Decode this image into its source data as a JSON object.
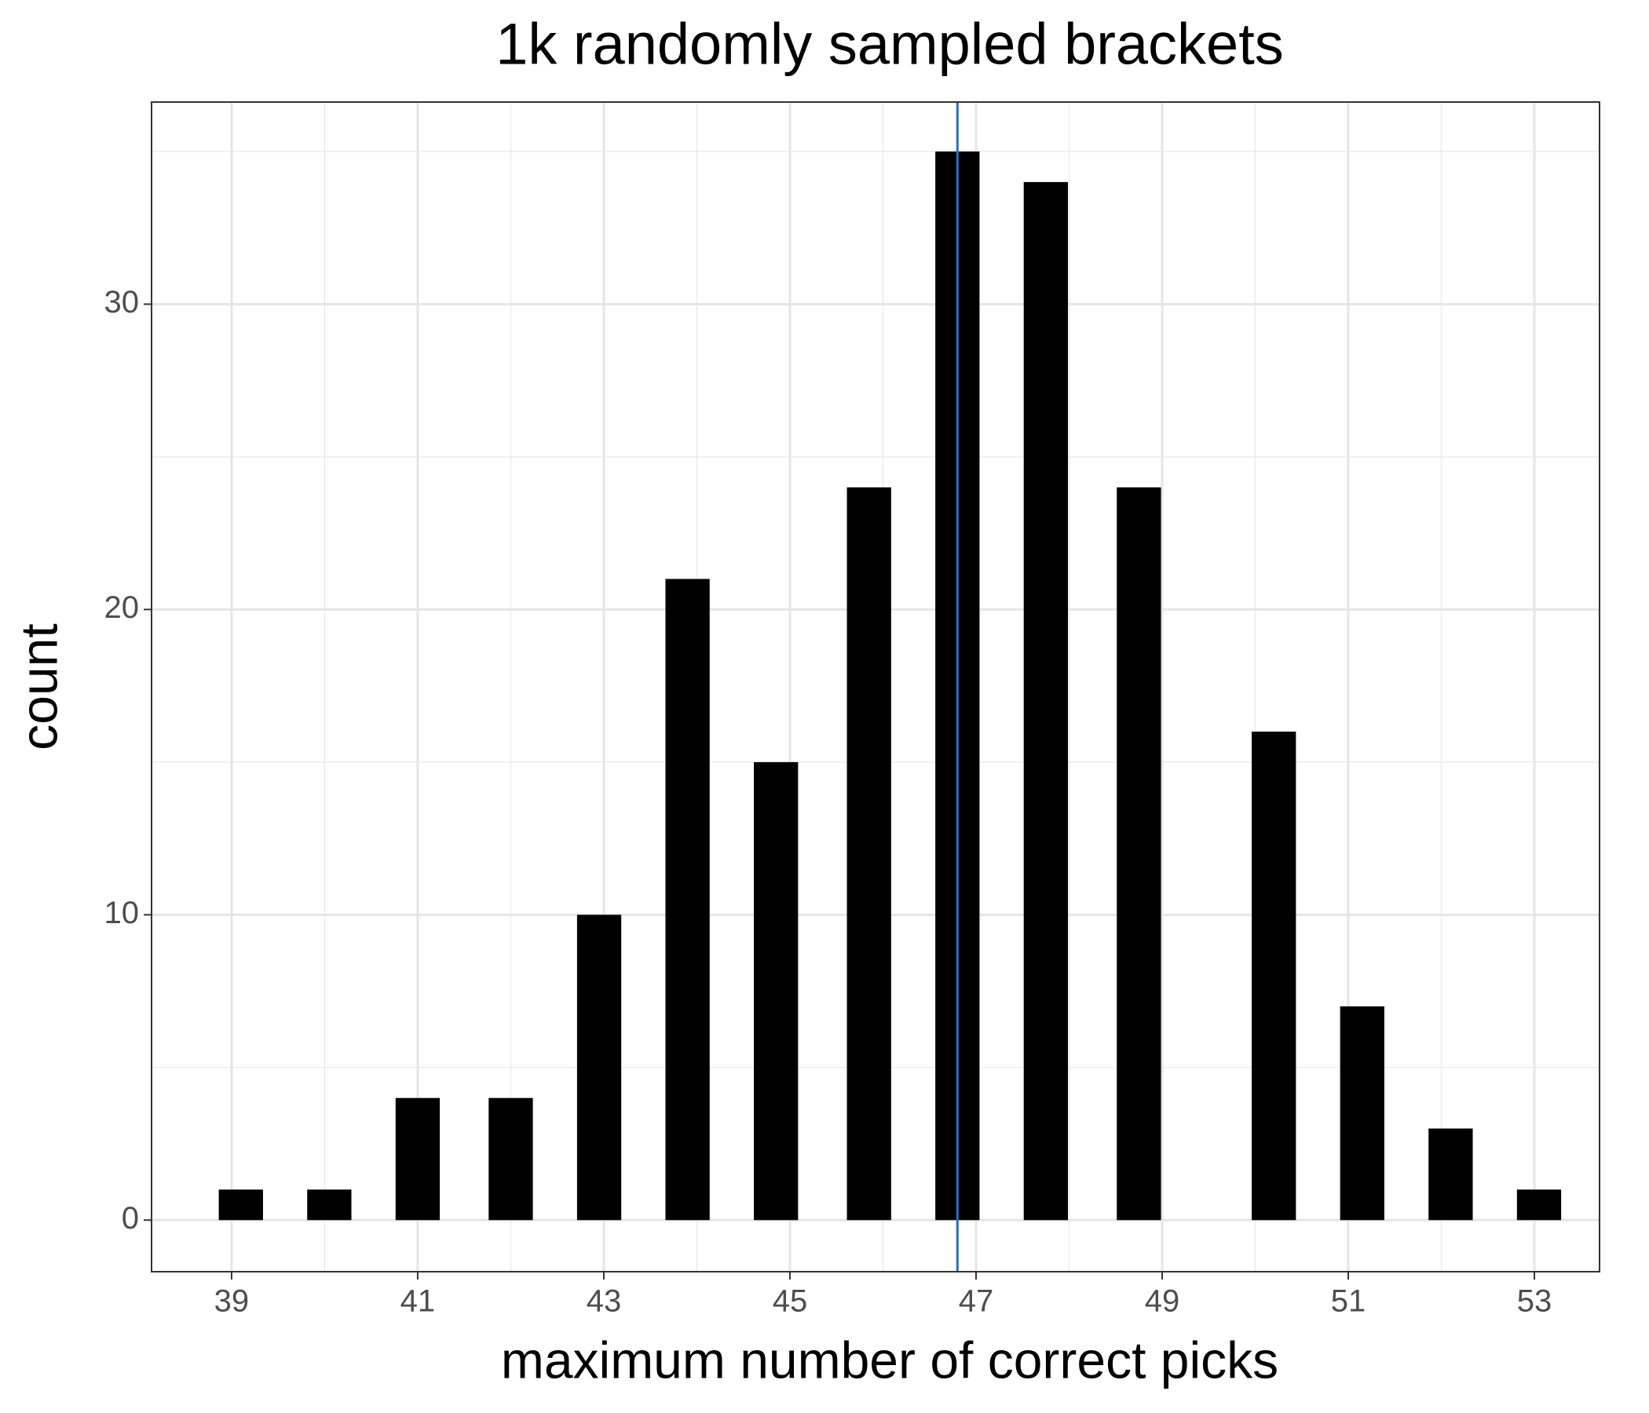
{
  "chart_data": {
    "type": "bar",
    "title": "1k randomly sampled brackets",
    "x_label": "maximum number of correct picks",
    "y_label": "count",
    "x": [
      39.1,
      40.05,
      41.0,
      42.0,
      42.95,
      43.9,
      44.85,
      45.85,
      46.8,
      47.75,
      48.75,
      50.2,
      51.15,
      52.1,
      53.05
    ],
    "values": [
      1,
      1,
      4,
      4,
      10,
      21,
      15,
      24,
      35,
      34,
      24,
      16,
      7,
      3,
      1
    ],
    "color": "#000000",
    "vline": {
      "value": 46.8,
      "color": "#1f6fd6"
    },
    "xlim": [
      38.14,
      53.7
    ],
    "xticks": [
      39,
      41,
      43,
      45,
      47,
      49,
      51,
      53
    ],
    "minor_xticks": [
      40,
      42,
      44,
      46,
      48,
      50,
      52
    ],
    "ylim": [
      -1.69,
      36.62
    ],
    "yticks": [
      0,
      10,
      20,
      30
    ],
    "minor_yticks": [
      5,
      15,
      25,
      35
    ],
    "grid": true
  }
}
